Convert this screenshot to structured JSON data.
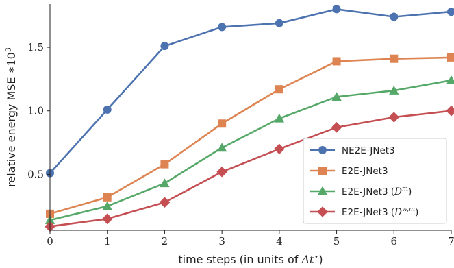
{
  "chart_data": {
    "type": "line",
    "x": [
      0,
      1,
      2,
      3,
      4,
      5,
      6,
      7
    ],
    "xlabel_prefix": "time steps (in units of ",
    "xlabel_math": "Δt",
    "xlabel_sup": "⋆",
    "xlabel_suffix": ")",
    "ylabel_prefix": "relative energy MSE ",
    "ylabel_math": "∗10",
    "ylabel_sup": "3",
    "xlim": [
      0,
      7
    ],
    "ylim": [
      0.06,
      1.84
    ],
    "xticks": [
      0,
      1,
      2,
      3,
      4,
      5,
      6,
      7
    ],
    "yticks": [
      0.5,
      1.0,
      1.5
    ],
    "ytick_labels": [
      "0.5",
      "1.0",
      "1.5"
    ],
    "grid": false,
    "legend_position": "lower-right",
    "series": [
      {
        "name": "NE2E-JNet3",
        "label_main": "NE2E-JNet3",
        "label_math": "",
        "label_sup": "",
        "color": "#4c72b0",
        "marker": "circle",
        "values": [
          0.51,
          1.01,
          1.51,
          1.66,
          1.69,
          1.8,
          1.74,
          1.78
        ]
      },
      {
        "name": "E2E-JNet3",
        "label_main": "E2E-JNet3",
        "label_math": "",
        "label_sup": "",
        "color": "#dd8452",
        "marker": "square",
        "values": [
          0.19,
          0.32,
          0.58,
          0.9,
          1.17,
          1.39,
          1.41,
          1.42
        ]
      },
      {
        "name": "E2E-JNet3 (D^m)",
        "label_main": "E2E-JNet3 ",
        "label_math": "D",
        "label_sup": "m",
        "color": "#55a868",
        "marker": "triangle",
        "values": [
          0.14,
          0.25,
          0.43,
          0.71,
          0.94,
          1.11,
          1.16,
          1.24
        ]
      },
      {
        "name": "E2E-JNet3 (D^{w,m})",
        "label_main": "E2E-JNet3 ",
        "label_math": "D",
        "label_sup": "w,m",
        "color": "#c44e52",
        "marker": "diamond",
        "values": [
          0.09,
          0.15,
          0.28,
          0.52,
          0.7,
          0.87,
          0.95,
          1.0
        ]
      }
    ]
  }
}
